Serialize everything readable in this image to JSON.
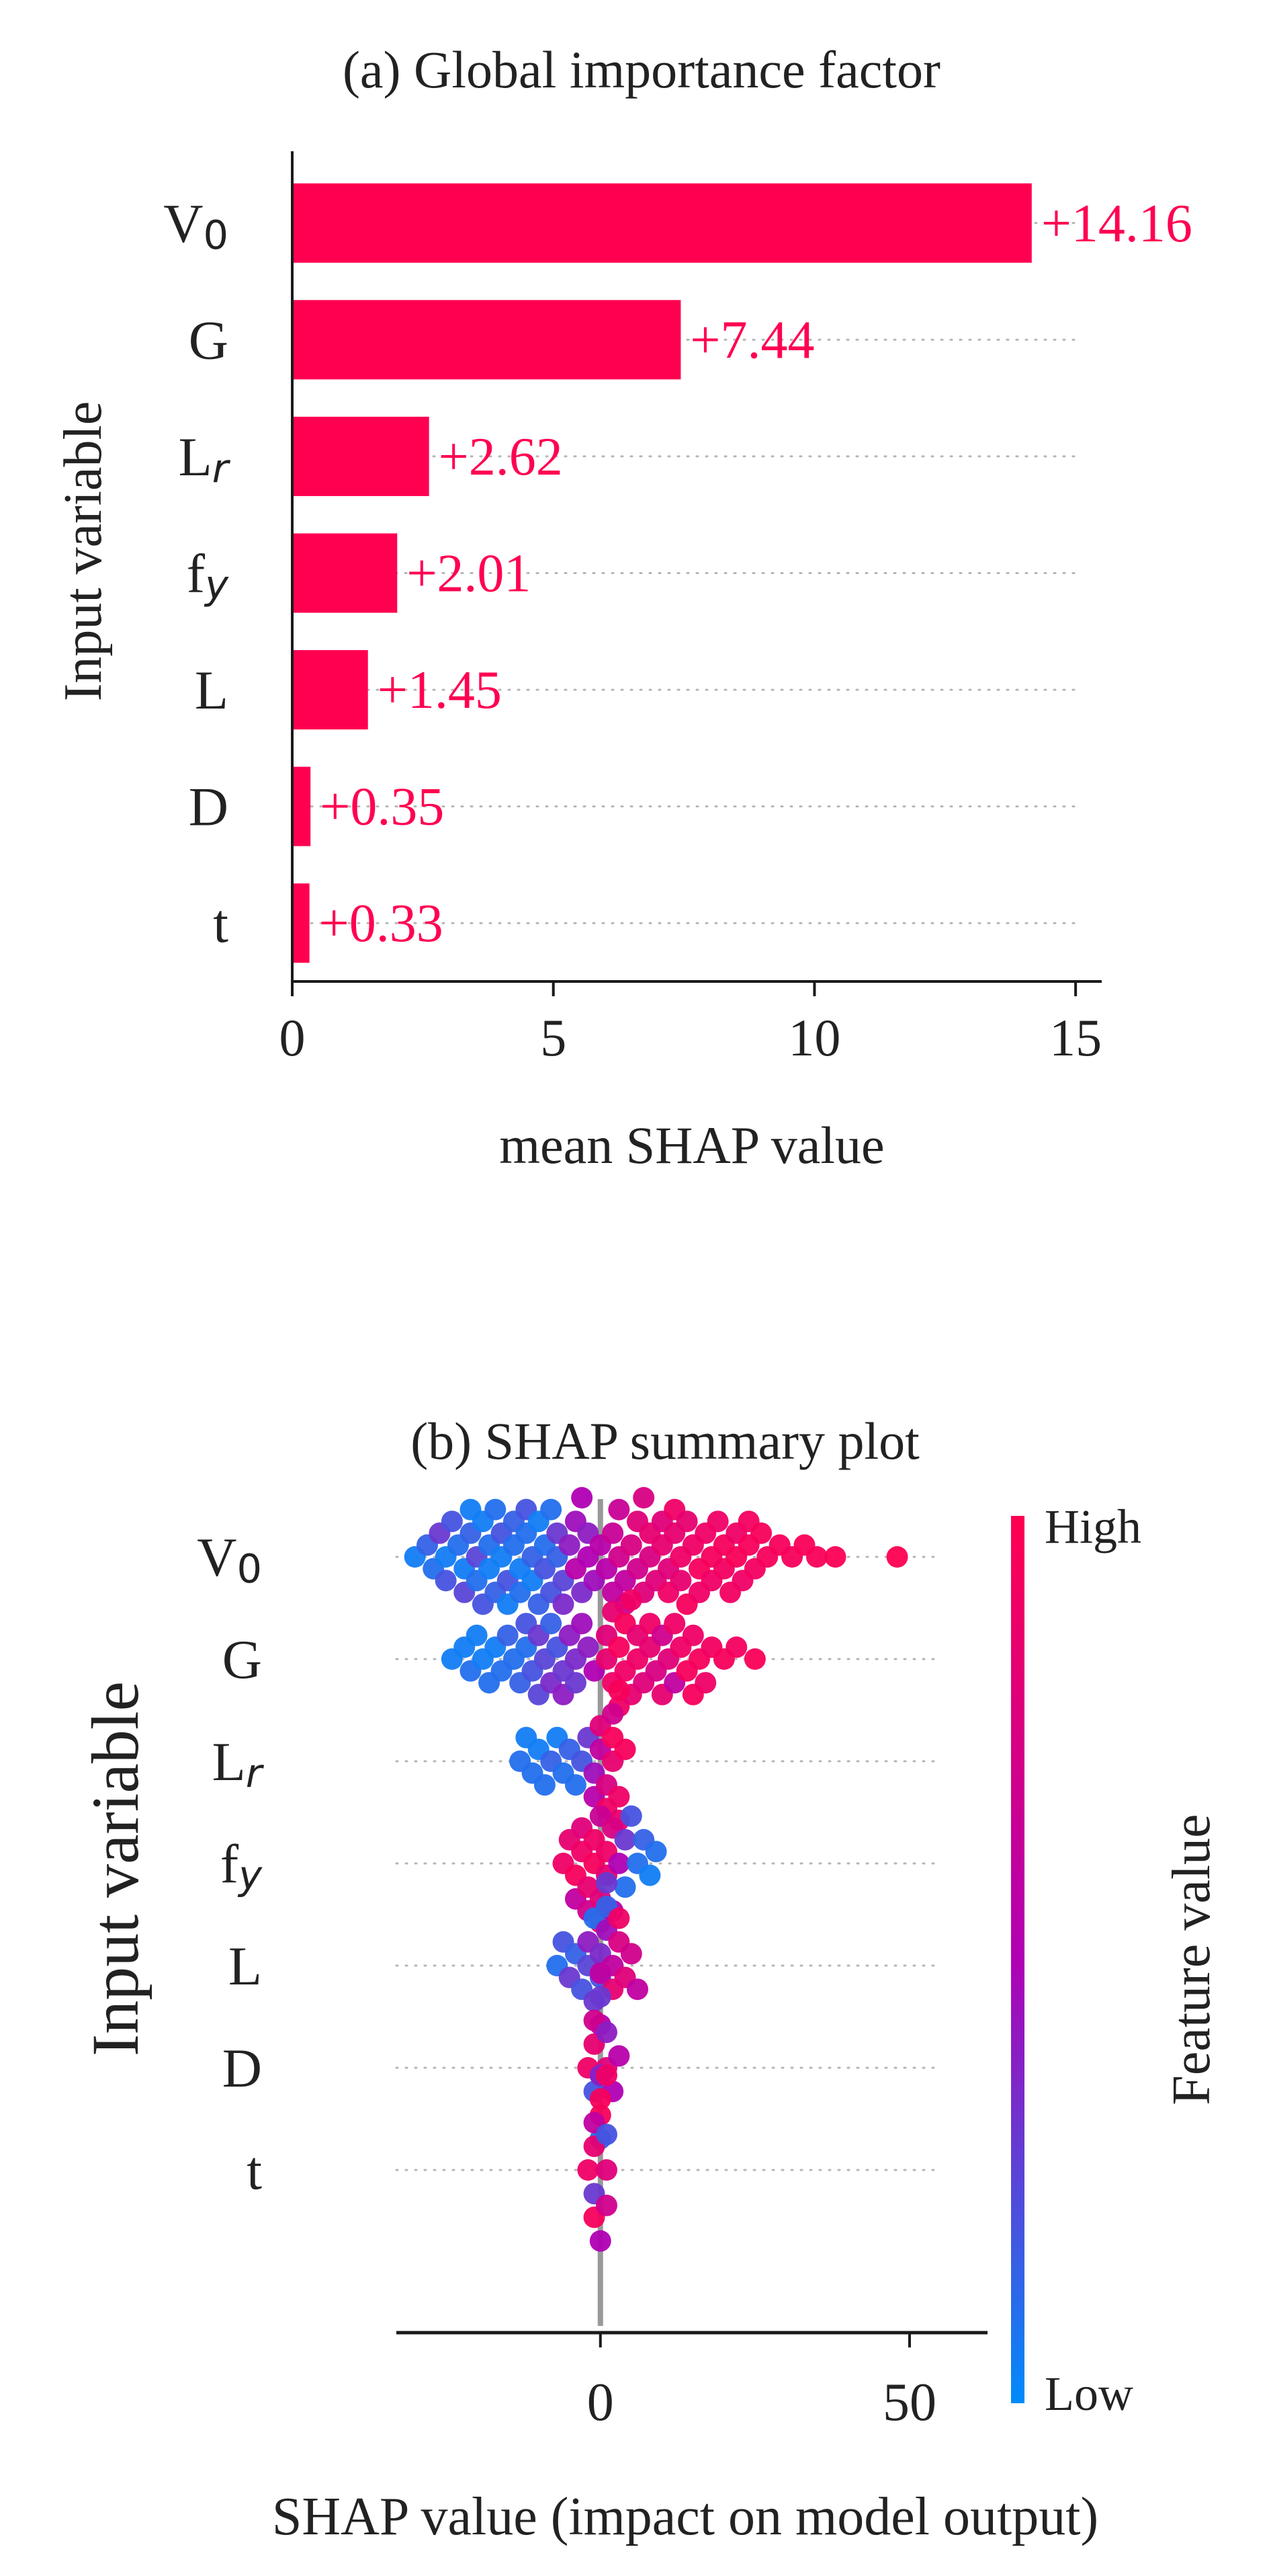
{
  "colors": {
    "accent": "#ff0051",
    "low": "#008bfb",
    "axis": "#1a1a1a",
    "zero_line": "#999999",
    "grid_dots": "#b5b5b5"
  },
  "chart_data": [
    {
      "type": "bar",
      "title": "(a) Global importance factor",
      "xlabel": "mean SHAP value",
      "ylabel": "Input variable",
      "categories": [
        {
          "base": "V",
          "sub": "0"
        },
        {
          "base": "G",
          "sub": ""
        },
        {
          "base": "L",
          "sub": "r"
        },
        {
          "base": "f",
          "sub": "y"
        },
        {
          "base": "L",
          "sub": ""
        },
        {
          "base": "D",
          "sub": ""
        },
        {
          "base": "t",
          "sub": ""
        }
      ],
      "values": [
        14.16,
        7.44,
        2.62,
        2.01,
        1.45,
        0.35,
        0.33
      ],
      "value_labels": [
        "+14.16",
        "+7.44",
        "+2.62",
        "+2.01",
        "+1.45",
        "+0.35",
        "+0.33"
      ],
      "xlim": [
        0,
        15.5
      ],
      "xticks": [
        0,
        5,
        10,
        15
      ],
      "xtick_labels": [
        "0",
        "5",
        "10",
        "15"
      ],
      "bar_color": "#ff0051"
    },
    {
      "type": "scatter",
      "title": "(b) SHAP summary plot",
      "xlabel": "SHAP value (impact on model output)",
      "ylabel": "Input variable",
      "categories": [
        {
          "base": "V",
          "sub": "0"
        },
        {
          "base": "G",
          "sub": ""
        },
        {
          "base": "L",
          "sub": "r"
        },
        {
          "base": "f",
          "sub": "y"
        },
        {
          "base": "L",
          "sub": ""
        },
        {
          "base": "D",
          "sub": ""
        },
        {
          "base": "t",
          "sub": ""
        }
      ],
      "xlim": [
        -33,
        55
      ],
      "xticks": [
        0,
        50
      ],
      "xtick_labels": [
        "0",
        "50"
      ],
      "colorbar_label": "Feature value",
      "colorbar_high": "High",
      "colorbar_low": "Low",
      "series": [
        {
          "feature": "V0",
          "points": [
            [
              -30,
              0.05
            ],
            [
              -28,
              0.15
            ],
            [
              -26,
              0.3
            ],
            [
              -25,
              0.05
            ],
            [
              -24,
              0.2
            ],
            [
              -22,
              0.05
            ],
            [
              -21,
              0.15
            ],
            [
              -20,
              0.25
            ],
            [
              -19,
              0.05
            ],
            [
              -18,
              0.1
            ],
            [
              -17,
              0.15
            ],
            [
              -16,
              0.05
            ],
            [
              -15,
              0.2
            ],
            [
              -14,
              0.1
            ],
            [
              -13,
              0.05
            ],
            [
              -12,
              0.1
            ],
            [
              -11,
              0.15
            ],
            [
              -10,
              0.05
            ],
            [
              -9,
              0.1
            ],
            [
              -8,
              0.2
            ],
            [
              -7,
              0.15
            ],
            [
              -6,
              0.25
            ],
            [
              -5,
              0.4
            ],
            [
              -4,
              0.55
            ],
            [
              -3,
              0.35
            ],
            [
              -2,
              0.5
            ],
            [
              -1,
              0.45
            ],
            [
              1,
              0.55
            ],
            [
              2,
              0.65
            ],
            [
              3,
              0.7
            ],
            [
              4,
              0.6
            ],
            [
              5,
              0.75
            ],
            [
              6,
              0.7
            ],
            [
              7,
              0.8
            ],
            [
              8,
              0.75
            ],
            [
              9,
              0.8
            ],
            [
              10,
              0.85
            ],
            [
              11,
              0.8
            ],
            [
              12,
              0.85
            ],
            [
              13,
              0.9
            ],
            [
              14,
              0.85
            ],
            [
              15,
              0.9
            ],
            [
              16,
              0.95
            ],
            [
              17,
              0.9
            ],
            [
              18,
              0.95
            ],
            [
              19,
              0.9
            ],
            [
              20,
              0.95
            ],
            [
              21,
              0.92
            ],
            [
              22,
              0.96
            ],
            [
              23,
              0.9
            ],
            [
              24,
              0.95
            ],
            [
              25,
              0.92
            ],
            [
              27,
              0.95
            ],
            [
              29,
              0.95
            ],
            [
              31,
              0.95
            ],
            [
              33,
              0.97
            ],
            [
              35,
              0.96
            ],
            [
              38,
              0.98
            ],
            [
              48,
              1.0
            ],
            [
              -27,
              0.1
            ],
            [
              -25,
              0.2
            ],
            [
              -23,
              0.1
            ],
            [
              -22,
              0.25
            ],
            [
              -21,
              0.05
            ],
            [
              -20,
              0.1
            ],
            [
              -19,
              0.2
            ],
            [
              -18,
              0.05
            ],
            [
              -17,
              0.1
            ],
            [
              -16,
              0.2
            ],
            [
              -15,
              0.05
            ],
            [
              -14,
              0.15
            ],
            [
              -13,
              0.1
            ],
            [
              -12,
              0.2
            ],
            [
              -11,
              0.05
            ],
            [
              -10,
              0.15
            ],
            [
              -9,
              0.2
            ],
            [
              -8,
              0.1
            ],
            [
              -7,
              0.3
            ],
            [
              -6,
              0.35
            ],
            [
              -4,
              0.45
            ],
            [
              -3,
              0.5
            ],
            [
              -2,
              0.4
            ],
            [
              0,
              0.55
            ],
            [
              2,
              0.6
            ],
            [
              3,
              0.65
            ],
            [
              4,
              0.7
            ],
            [
              6,
              0.8
            ],
            [
              7,
              0.75
            ],
            [
              8,
              0.85
            ],
            [
              10,
              0.8
            ],
            [
              11,
              0.9
            ],
            [
              12,
              0.9
            ],
            [
              13,
              0.85
            ],
            [
              14,
              0.95
            ],
            [
              16,
              0.9
            ],
            [
              18,
              0.9
            ],
            [
              20,
              0.92
            ],
            [
              22,
              0.9
            ],
            [
              24,
              0.93
            ],
            [
              26,
              0.95
            ]
          ]
        },
        {
          "feature": "G",
          "points": [
            [
              -24,
              0.05
            ],
            [
              -22,
              0.05
            ],
            [
              -20,
              0.05
            ],
            [
              -18,
              0.1
            ],
            [
              -17,
              0.05
            ],
            [
              -16,
              0.1
            ],
            [
              -14,
              0.1
            ],
            [
              -13,
              0.15
            ],
            [
              -12,
              0.1
            ],
            [
              -11,
              0.2
            ],
            [
              -10,
              0.3
            ],
            [
              -9,
              0.25
            ],
            [
              -8,
              0.35
            ],
            [
              -7,
              0.2
            ],
            [
              -6,
              0.3
            ],
            [
              -5,
              0.4
            ],
            [
              -4,
              0.35
            ],
            [
              -3,
              0.45
            ],
            [
              -2,
              0.4
            ],
            [
              -1,
              0.5
            ],
            [
              1,
              0.85
            ],
            [
              2,
              0.9
            ],
            [
              3,
              0.95
            ],
            [
              4,
              0.9
            ],
            [
              5,
              0.85
            ],
            [
              6,
              0.9
            ],
            [
              7,
              0.8
            ],
            [
              8,
              0.85
            ],
            [
              9,
              0.75
            ],
            [
              10,
              0.7
            ],
            [
              11,
              0.8
            ],
            [
              12,
              0.6
            ],
            [
              13,
              0.9
            ],
            [
              14,
              0.95
            ],
            [
              15,
              0.9
            ],
            [
              16,
              0.95
            ],
            [
              18,
              0.92
            ],
            [
              20,
              0.95
            ],
            [
              22,
              0.93
            ],
            [
              25,
              0.97
            ],
            [
              -21,
              0.1
            ],
            [
              -19,
              0.05
            ],
            [
              -15,
              0.15
            ],
            [
              -12,
              0.2
            ],
            [
              -10,
              0.25
            ],
            [
              -8,
              0.15
            ],
            [
              -6,
              0.4
            ],
            [
              -4,
              0.3
            ],
            [
              1,
              0.8
            ],
            [
              2,
              0.85
            ],
            [
              3,
              0.9
            ],
            [
              4,
              0.95
            ],
            [
              5,
              0.9
            ],
            [
              6,
              0.85
            ],
            [
              8,
              0.9
            ],
            [
              10,
              0.85
            ],
            [
              12,
              0.9
            ],
            [
              15,
              0.95
            ],
            [
              17,
              0.9
            ]
          ]
        },
        {
          "feature": "Lr",
          "points": [
            [
              -13,
              0.1
            ],
            [
              -12,
              0.05
            ],
            [
              -11,
              0.1
            ],
            [
              -10,
              0.05
            ],
            [
              -9,
              0.1
            ],
            [
              -8,
              0.15
            ],
            [
              -7,
              0.05
            ],
            [
              -6,
              0.1
            ],
            [
              -5,
              0.15
            ],
            [
              -4,
              0.1
            ],
            [
              -3,
              0.2
            ],
            [
              -2,
              0.3
            ],
            [
              -1,
              0.45
            ],
            [
              0,
              0.6
            ],
            [
              1,
              0.75
            ],
            [
              2,
              0.85
            ],
            [
              3,
              0.9
            ],
            [
              4,
              0.95
            ],
            [
              2,
              0.95
            ],
            [
              3,
              0.85
            ],
            [
              1,
              0.9
            ],
            [
              0,
              0.8
            ],
            [
              -1,
              0.55
            ],
            [
              2,
              0.7
            ],
            [
              3,
              0.95
            ]
          ]
        },
        {
          "feature": "fy",
          "points": [
            [
              -6,
              0.9
            ],
            [
              -5,
              0.85
            ],
            [
              -4,
              0.95
            ],
            [
              -3,
              0.9
            ],
            [
              -2,
              0.85
            ],
            [
              -1,
              0.95
            ],
            [
              0,
              0.8
            ],
            [
              1,
              0.9
            ],
            [
              2,
              0.75
            ],
            [
              3,
              0.5
            ],
            [
              4,
              0.3
            ],
            [
              5,
              0.2
            ],
            [
              6,
              0.1
            ],
            [
              7,
              0.15
            ],
            [
              8,
              0.05
            ],
            [
              9,
              0.1
            ],
            [
              -4,
              0.6
            ],
            [
              -2,
              0.7
            ],
            [
              0,
              0.65
            ],
            [
              2,
              0.55
            ],
            [
              -1,
              0.9
            ],
            [
              1,
              0.85
            ],
            [
              0,
              0.95
            ],
            [
              -3,
              0.8
            ],
            [
              4,
              0.1
            ]
          ]
        },
        {
          "feature": "L",
          "points": [
            [
              -7,
              0.1
            ],
            [
              -6,
              0.2
            ],
            [
              -5,
              0.3
            ],
            [
              -4,
              0.15
            ],
            [
              -3,
              0.2
            ],
            [
              -2,
              0.25
            ],
            [
              -1,
              0.3
            ],
            [
              0,
              0.35
            ],
            [
              1,
              0.45
            ],
            [
              2,
              0.6
            ],
            [
              3,
              0.75
            ],
            [
              4,
              0.8
            ],
            [
              5,
              0.7
            ],
            [
              6,
              0.6
            ],
            [
              0,
              0.2
            ],
            [
              -1,
              0.1
            ],
            [
              1,
              0.15
            ],
            [
              2,
              0.85
            ],
            [
              3,
              0.9
            ],
            [
              -2,
              0.4
            ],
            [
              0,
              0.5
            ],
            [
              1,
              0.3
            ]
          ]
        },
        {
          "feature": "D",
          "points": [
            [
              -2,
              0.9
            ],
            [
              -1,
              0.85
            ],
            [
              0,
              0.95
            ],
            [
              1,
              0.8
            ],
            [
              2,
              0.5
            ],
            [
              3,
              0.55
            ],
            [
              0,
              0.3
            ],
            [
              -1,
              0.2
            ],
            [
              0,
              0.1
            ],
            [
              1,
              0.4
            ],
            [
              -1,
              0.7
            ],
            [
              0,
              0.6
            ]
          ]
        },
        {
          "feature": "t",
          "points": [
            [
              -2,
              0.9
            ],
            [
              -1,
              0.85
            ],
            [
              0,
              0.95
            ],
            [
              1,
              0.8
            ],
            [
              0,
              0.5
            ],
            [
              -1,
              0.3
            ],
            [
              1,
              0.2
            ],
            [
              0,
              0.1
            ],
            [
              -1,
              0.6
            ],
            [
              1,
              0.7
            ],
            [
              0,
              0.4
            ],
            [
              -1,
              0.95
            ],
            [
              1,
              0.9
            ]
          ]
        }
      ]
    }
  ]
}
